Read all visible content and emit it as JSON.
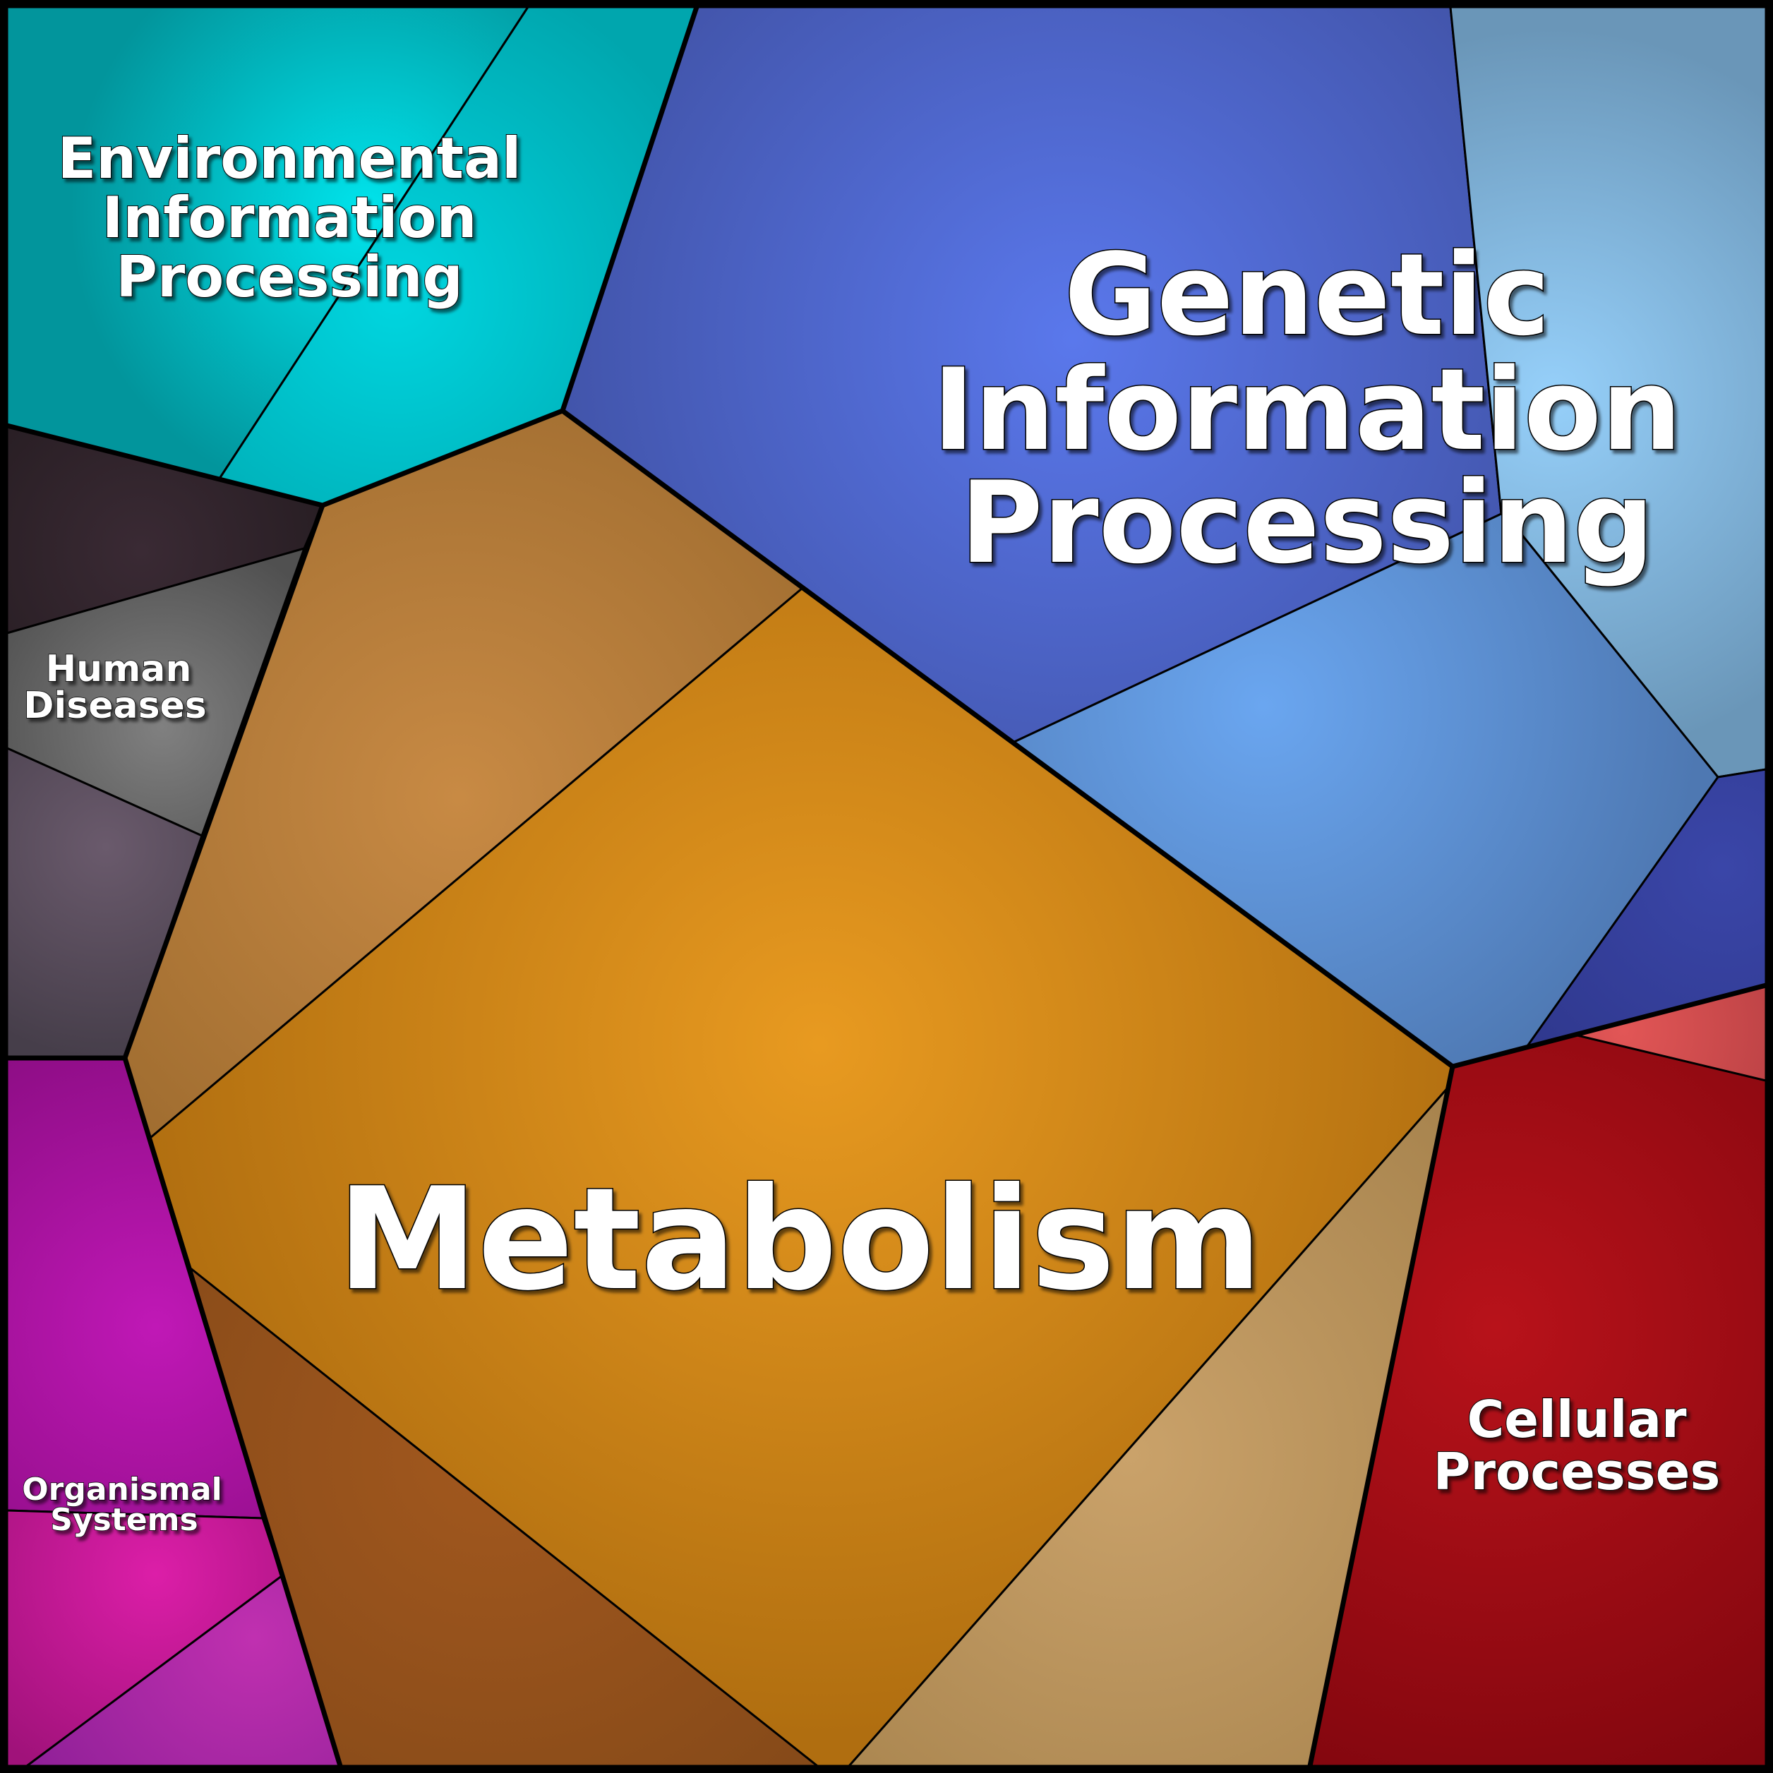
{
  "diagram": {
    "type": "voronoi-treemap",
    "categories": [
      {
        "id": "environmental",
        "label_lines": [
          "Environmental",
          "Information",
          "Processing"
        ],
        "base_color": "#00b4c0",
        "highlight_color": "#00e4ec",
        "shade_color": "#02959c"
      },
      {
        "id": "genetic",
        "label_lines": [
          "Genetic",
          "Information",
          "Processing"
        ],
        "base_color": "#4a5fc4",
        "highlight_color": "#5a78ec",
        "shade_color": "#3e4f9f"
      },
      {
        "id": "human-diseases",
        "label_lines": [
          "Human",
          "Diseases"
        ],
        "base_color": "#5a5a5e",
        "highlight_color": "#7a7a7a",
        "shade_color": "#2a2024"
      },
      {
        "id": "metabolism",
        "label_lines": [
          "Metabolism"
        ],
        "base_color": "#d08a1c",
        "highlight_color": "#e89a20",
        "shade_color": "#b37212"
      },
      {
        "id": "cellular",
        "label_lines": [
          "Cellular",
          "Processes"
        ],
        "base_color": "#9a0c14",
        "highlight_color": "#b8121a",
        "shade_color": "#80060e"
      },
      {
        "id": "organismal",
        "label_lines": [
          "Organismal",
          "Systems"
        ],
        "base_color": "#a8149e",
        "highlight_color": "#c818b4",
        "shade_color": "#8a0c80"
      }
    ]
  }
}
